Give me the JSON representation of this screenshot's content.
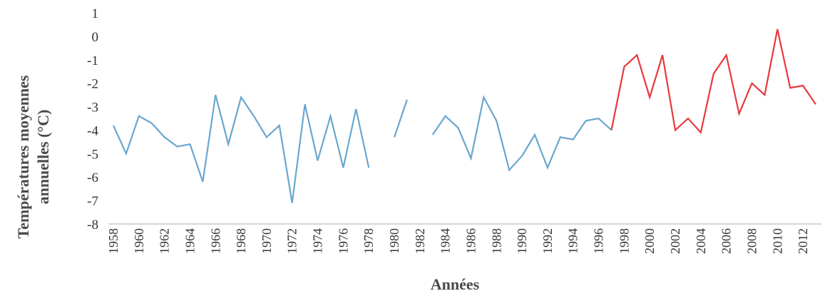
{
  "chart_data": {
    "type": "line",
    "title": "",
    "xlabel": "Années",
    "ylabel_lines": [
      "Températures moyennes",
      "annuelles (°C)"
    ],
    "ylim": [
      -8,
      1
    ],
    "y_ticks": [
      "1",
      "0",
      "-1",
      "-2",
      "-3",
      "-4",
      "-5",
      "-6",
      "-7",
      "-8"
    ],
    "x_range": [
      1958,
      2013
    ],
    "x_tick_labels": [
      "1958",
      "1960",
      "1962",
      "1964",
      "1966",
      "1968",
      "1970",
      "1972",
      "1974",
      "1976",
      "1978",
      "1980",
      "1982",
      "1984",
      "1986",
      "1988",
      "1990",
      "1992",
      "1994",
      "1996",
      "1998",
      "2000",
      "2002",
      "2004",
      "2006",
      "2008",
      "2010",
      "2012"
    ],
    "grid": false,
    "series": [
      {
        "color": "#6aa6cf",
        "points": [
          [
            1958,
            -3.8
          ],
          [
            1959,
            -5.0
          ],
          [
            1960,
            -3.4
          ],
          [
            1961,
            -3.7
          ],
          [
            1962,
            -4.3
          ],
          [
            1963,
            -4.7
          ],
          [
            1964,
            -4.6
          ],
          [
            1965,
            -6.2
          ],
          [
            1966,
            -2.5
          ],
          [
            1967,
            -4.6
          ],
          [
            1968,
            -2.6
          ],
          [
            1969,
            -3.4
          ],
          [
            1970,
            -4.3
          ],
          [
            1971,
            -3.8
          ],
          [
            1972,
            -7.1
          ],
          [
            1973,
            -2.9
          ],
          [
            1974,
            -5.3
          ],
          [
            1975,
            -3.4
          ],
          [
            1976,
            -5.6
          ],
          [
            1977,
            -3.1
          ],
          [
            1978,
            -5.6
          ],
          [
            1979,
            null
          ],
          [
            1980,
            -4.3
          ],
          [
            1981,
            -2.7
          ],
          [
            1982,
            null
          ],
          [
            1983,
            -4.2
          ],
          [
            1984,
            -3.4
          ],
          [
            1985,
            -3.9
          ],
          [
            1986,
            -5.2
          ],
          [
            1987,
            -2.6
          ],
          [
            1988,
            -3.6
          ],
          [
            1989,
            -5.7
          ],
          [
            1990,
            -5.1
          ],
          [
            1991,
            -4.2
          ],
          [
            1992,
            -5.6
          ],
          [
            1993,
            -4.3
          ],
          [
            1994,
            -4.4
          ],
          [
            1995,
            -3.6
          ],
          [
            1996,
            -3.5
          ],
          [
            1997,
            -4.0
          ]
        ]
      },
      {
        "color": "#e8383d",
        "points": [
          [
            1997,
            -4.0
          ],
          [
            1998,
            -1.3
          ],
          [
            1999,
            -0.8
          ],
          [
            2000,
            -2.6
          ],
          [
            2001,
            -0.8
          ],
          [
            2002,
            -4.0
          ],
          [
            2003,
            -3.5
          ],
          [
            2004,
            -4.1
          ],
          [
            2005,
            -1.6
          ],
          [
            2006,
            -0.8
          ],
          [
            2007,
            -3.3
          ],
          [
            2008,
            -2.0
          ],
          [
            2009,
            -2.5
          ],
          [
            2010,
            0.3
          ],
          [
            2011,
            -2.2
          ],
          [
            2012,
            -2.1
          ],
          [
            2013,
            -2.9
          ]
        ]
      }
    ]
  }
}
